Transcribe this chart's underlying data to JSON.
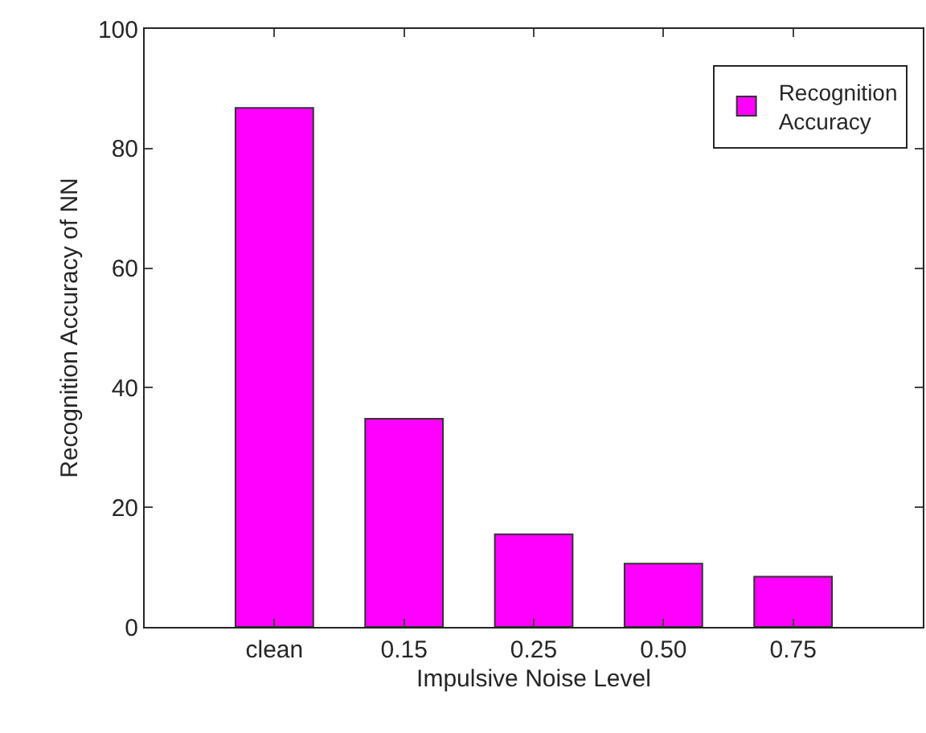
{
  "chart_data": {
    "type": "bar",
    "xlabel": "Impulsive Noise Level",
    "ylabel": "Recognition Accuracy of NN",
    "categories": [
      "clean",
      "0.15",
      "0.25",
      "0.50",
      "0.75"
    ],
    "series": [
      {
        "name": "Recognition Accuracy",
        "color": "#ff00ff",
        "values": [
          86.8,
          34.8,
          15.5,
          10.6,
          8.4
        ]
      }
    ],
    "ylim": [
      0,
      100
    ],
    "yticks": [
      0,
      20,
      40,
      60,
      80,
      100
    ],
    "legend": "top right"
  }
}
